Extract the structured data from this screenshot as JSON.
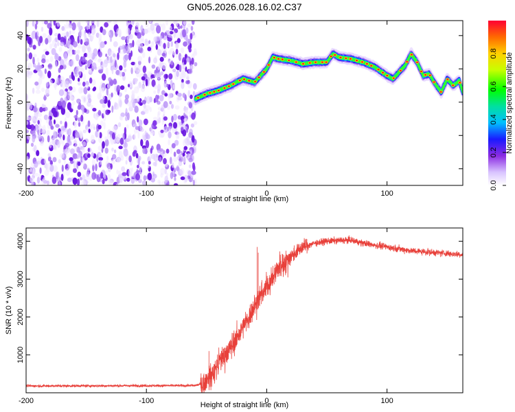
{
  "title": "GN05.2026.028.16.02.C37",
  "chart_data": [
    {
      "type": "heatmap",
      "xlabel": "Height of straight line (km)",
      "ylabel": "Frequency (Hz)",
      "xlim": [
        -200,
        163
      ],
      "ylim": [
        -50,
        49
      ],
      "xticks": [
        -200,
        -100,
        0,
        100
      ],
      "yticks": [
        -40,
        -20,
        0,
        20,
        40
      ],
      "noise_region_x": [
        -200,
        -59
      ],
      "ridge": {
        "x": [
          -59,
          -50,
          -40,
          -30,
          -20,
          -10,
          0,
          5,
          10,
          20,
          30,
          40,
          50,
          55,
          60,
          70,
          80,
          90,
          100,
          105,
          110,
          115,
          120,
          125,
          130,
          135,
          140,
          145,
          150,
          155,
          160,
          163
        ],
        "y": [
          2,
          5,
          7,
          10,
          14,
          12,
          20,
          27,
          26,
          25,
          23,
          24,
          24,
          29,
          27,
          26,
          24,
          21,
          16,
          14,
          18,
          22,
          29,
          24,
          16,
          17,
          11,
          6,
          14,
          10,
          13,
          6
        ]
      },
      "colorbar": {
        "label": "Normalized spectral amplitude",
        "range": [
          0,
          1
        ],
        "ticks": [
          0.0,
          0.2,
          0.4,
          0.6,
          0.8
        ]
      }
    },
    {
      "type": "line",
      "xlabel": "Height of straight line (km)",
      "ylabel": "SNR (10 * v/v)",
      "xlim": [
        -200,
        163
      ],
      "ylim": [
        0,
        4350
      ],
      "xticks": [
        -200,
        -100,
        0,
        100
      ],
      "yticks": [
        1000,
        2000,
        3000,
        4000
      ],
      "color": "#e8403a",
      "profile": {
        "x": [
          -200,
          -60,
          -52,
          -45,
          -40,
          -30,
          -20,
          -10,
          0,
          10,
          20,
          30,
          40,
          50,
          60,
          70,
          80,
          100,
          120,
          140,
          163
        ],
        "y": [
          180,
          190,
          250,
          500,
          800,
          1200,
          1700,
          2300,
          2800,
          3300,
          3600,
          3850,
          3950,
          4000,
          4020,
          4030,
          3950,
          3850,
          3750,
          3700,
          3650
        ]
      },
      "spikes": [
        {
          "x": -8,
          "y": 3850
        },
        {
          "x": -7,
          "y": 3700
        },
        {
          "x": -48,
          "y": 1100
        }
      ]
    }
  ]
}
